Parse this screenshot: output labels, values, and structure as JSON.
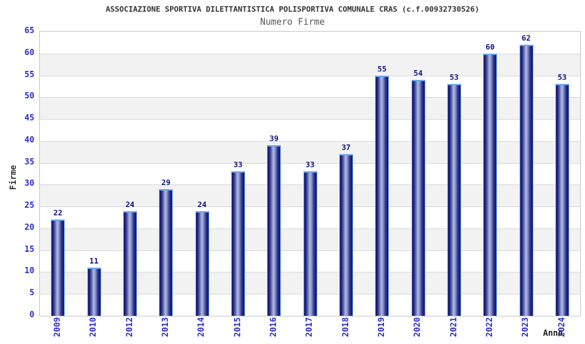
{
  "header": {
    "title": "ASSOCIAZIONE SPORTIVA DILETTANTISTICA POLISPORTIVA COMUNALE CRAS (c.f.00932730526)",
    "subtitle": "Numero Firme"
  },
  "chart_data": {
    "type": "bar",
    "title": "Numero Firme",
    "categories": [
      "2009",
      "2010",
      "2012",
      "2013",
      "2014",
      "2015",
      "2016",
      "2017",
      "2018",
      "2019",
      "2020",
      "2021",
      "2022",
      "2023",
      "2024"
    ],
    "values": [
      22,
      11,
      24,
      29,
      24,
      33,
      39,
      33,
      37,
      55,
      54,
      53,
      60,
      62,
      53
    ],
    "xlabel": "Anno",
    "ylabel": "Firme",
    "ylim": [
      0,
      65
    ],
    "ytick_step": 5,
    "yticks": [
      0,
      5,
      10,
      15,
      20,
      25,
      30,
      35,
      40,
      45,
      50,
      55,
      60,
      65
    ],
    "grid": true,
    "legend_position": "none",
    "band_fill": "alternating",
    "colors": {
      "bar_dark": "#12126a",
      "bar_highlight": "#b2badf",
      "bar_border": "#5d9bdd",
      "bar_top_edge": "#6aa6ec",
      "tick_label": "#2d2dcc",
      "value_label": "#131378",
      "band_gray": "#f2f2f2",
      "band_white": "#ffffff",
      "grid_line": "#dadada",
      "plot_border": "#c8c8c8",
      "title_color": "#333333",
      "subtitle_color": "#555555"
    }
  }
}
